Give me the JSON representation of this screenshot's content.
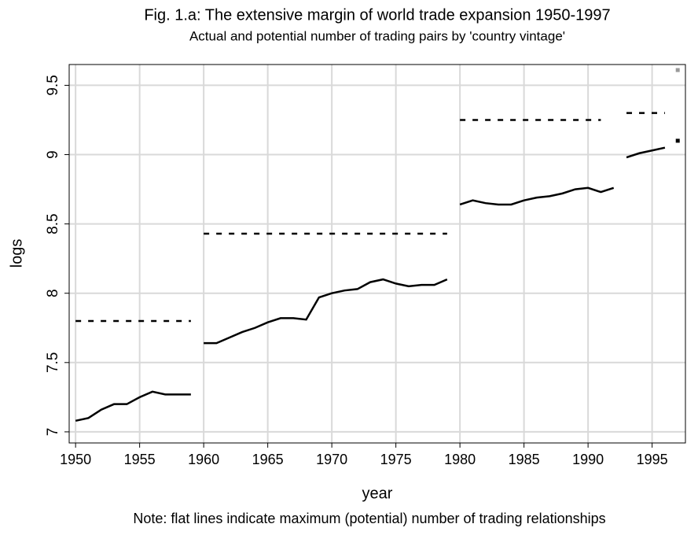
{
  "chart_data": {
    "type": "line",
    "title": "Fig. 1.a: The extensive margin of world trade expansion 1950-1997",
    "subtitle": "Actual and potential number of trading pairs by 'country vintage'",
    "xlabel": "year",
    "ylabel": "logs",
    "note": "Note: flat lines indicate maximum (potential) number of trading relationships",
    "xlim": [
      1949.5,
      1997.6
    ],
    "xticks": [
      1950,
      1955,
      1960,
      1965,
      1970,
      1975,
      1980,
      1985,
      1990,
      1995
    ],
    "ylim": [
      6.92,
      9.65
    ],
    "yticks": [
      7,
      7.5,
      8,
      8.5,
      9,
      9.5
    ],
    "grid": true,
    "series": [
      {
        "style": "solid",
        "color": "#000000",
        "x": [
          1950,
          1951,
          1952,
          1953,
          1954,
          1955,
          1956,
          1957,
          1958,
          1959
        ],
        "values": [
          7.08,
          7.1,
          7.16,
          7.2,
          7.2,
          7.25,
          7.29,
          7.27,
          7.27,
          7.27
        ]
      },
      {
        "style": "solid",
        "color": "#000000",
        "x": [
          1960,
          1961,
          1962,
          1963,
          1964,
          1965,
          1966,
          1967,
          1968,
          1969,
          1970,
          1971,
          1972,
          1973,
          1974,
          1975,
          1976,
          1977,
          1978,
          1979
        ],
        "values": [
          7.64,
          7.64,
          7.68,
          7.72,
          7.75,
          7.79,
          7.82,
          7.82,
          7.81,
          7.97,
          8.0,
          8.02,
          8.03,
          8.08,
          8.1,
          8.07,
          8.05,
          8.06,
          8.06,
          8.1
        ]
      },
      {
        "style": "solid",
        "color": "#000000",
        "x": [
          1980,
          1981,
          1982,
          1983,
          1984,
          1985,
          1986,
          1987,
          1988,
          1989,
          1990,
          1991,
          1992
        ],
        "values": [
          8.64,
          8.67,
          8.65,
          8.64,
          8.64,
          8.67,
          8.69,
          8.7,
          8.72,
          8.75,
          8.76,
          8.73,
          8.76
        ]
      },
      {
        "style": "solid",
        "color": "#000000",
        "x": [
          1993,
          1994,
          1995,
          1996
        ],
        "values": [
          8.98,
          9.01,
          9.03,
          9.05
        ]
      },
      {
        "style": "marker",
        "color": "#000000",
        "x": [
          1997
        ],
        "values": [
          9.1
        ]
      },
      {
        "style": "dashed",
        "color": "#000000",
        "x": [
          1950,
          1959
        ],
        "values": [
          7.8,
          7.8
        ]
      },
      {
        "style": "dashed",
        "color": "#000000",
        "x": [
          1960,
          1979
        ],
        "values": [
          8.43,
          8.43
        ]
      },
      {
        "style": "dashed",
        "color": "#000000",
        "x": [
          1980,
          1991
        ],
        "values": [
          9.25,
          9.25
        ]
      },
      {
        "style": "dashed",
        "color": "#000000",
        "x": [
          1993,
          1996
        ],
        "values": [
          9.3,
          9.3
        ]
      },
      {
        "style": "marker",
        "color": "#999999",
        "x": [
          1997
        ],
        "values": [
          9.61
        ]
      }
    ]
  }
}
